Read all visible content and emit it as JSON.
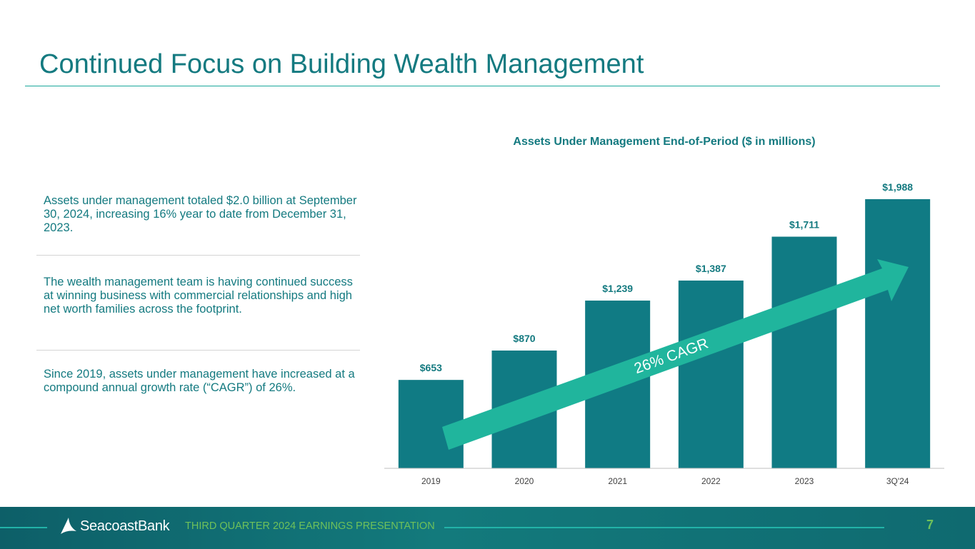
{
  "slide": {
    "title": "Continued Focus on Building Wealth Management",
    "bullets": [
      "Assets under management totaled $2.0 billion at September 30, 2024, increasing 16% year to date from December 31, 2023.",
      "The wealth management team is having continued success at winning business with commercial relationships and high net worth families across the footprint.",
      "Since 2019, assets under management have increased at a compound annual growth rate (“CAGR”) of 26%."
    ]
  },
  "chart_data": {
    "type": "bar",
    "title": "Assets Under Management End-of-Period ($ in millions)",
    "categories": [
      "2019",
      "2020",
      "2021",
      "2022",
      "2023",
      "3Q'24"
    ],
    "values": [
      653,
      870,
      1239,
      1387,
      1711,
      1988
    ],
    "data_labels": [
      "$653",
      "$870",
      "$1,239",
      "$1,387",
      "$1,711",
      "$1,988"
    ],
    "annotation": "26% CAGR",
    "ylim": [
      0,
      1988
    ],
    "grid": false,
    "colors": {
      "bar": "#107b84",
      "arrow": "#20b59d",
      "label": "#147a80"
    }
  },
  "footer": {
    "brand": "SeacoastBank",
    "text": "THIRD QUARTER 2024 EARNINGS PRESENTATION",
    "page": "7"
  }
}
